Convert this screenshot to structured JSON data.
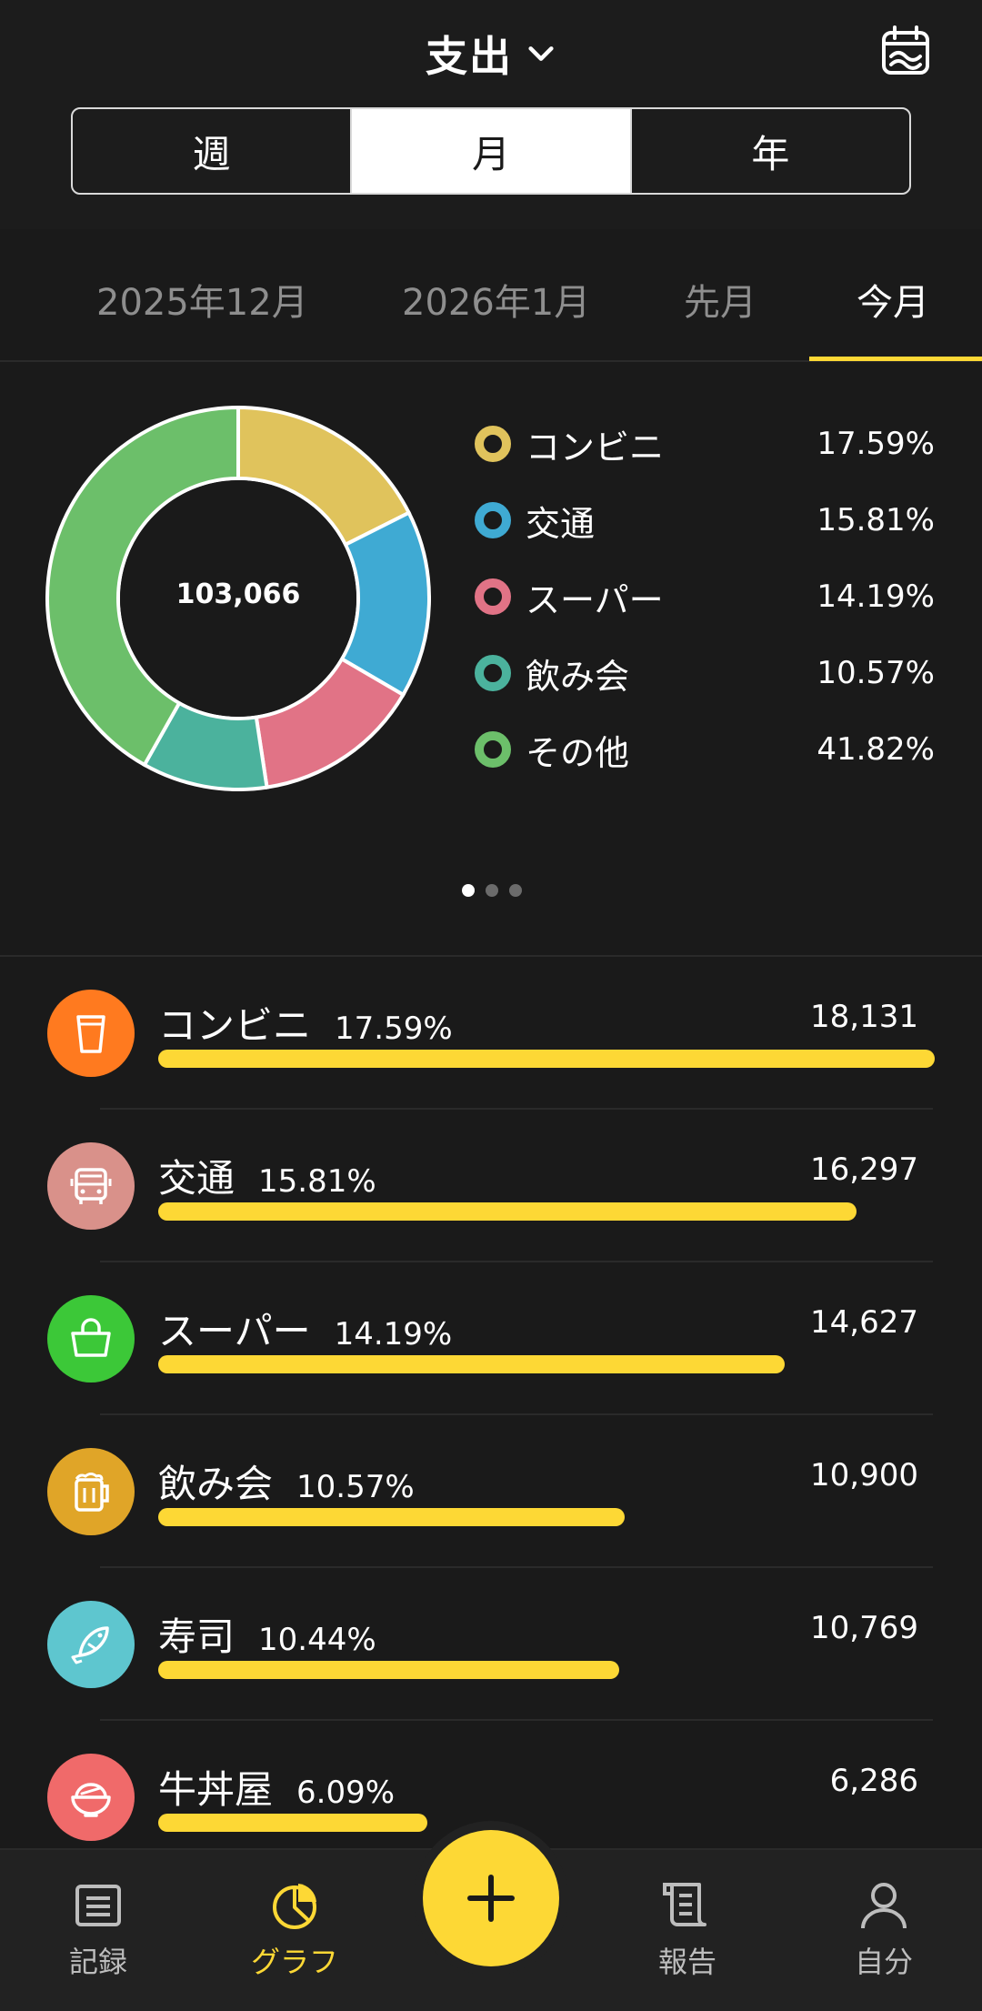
{
  "header": {
    "title": "支出",
    "segments": [
      "週",
      "月",
      "年"
    ],
    "active_segment": "月"
  },
  "month_tabs": [
    "2025年12月",
    "2026年1月",
    "先月",
    "今月"
  ],
  "summary": {
    "total": "103,066",
    "legend": [
      {
        "label": "コンビニ",
        "pct": "17.59%",
        "color": "#e0c35c"
      },
      {
        "label": "交通",
        "pct": "15.81%",
        "color": "#3faad3"
      },
      {
        "label": "スーパー",
        "pct": "14.19%",
        "color": "#e17386"
      },
      {
        "label": "飲み会",
        "pct": "10.57%",
        "color": "#4bb29d"
      },
      {
        "label": "その他",
        "pct": "41.82%",
        "color": "#6cbf6a"
      }
    ]
  },
  "chart_data": {
    "type": "pie",
    "categories": [
      "コンビニ",
      "交通",
      "スーパー",
      "飲み会",
      "その他"
    ],
    "values": [
      17.59,
      15.81,
      14.19,
      10.57,
      41.82
    ],
    "title": "",
    "center_label": "103,066"
  },
  "categories": [
    {
      "name": "コンビニ",
      "pct": "17.59%",
      "amount": "18,131",
      "value": 18131,
      "icon": "cup-icon",
      "color": "#ff7a1f"
    },
    {
      "name": "交通",
      "pct": "15.81%",
      "amount": "16,297",
      "value": 16297,
      "icon": "bus-icon",
      "color": "#d9918a"
    },
    {
      "name": "スーパー",
      "pct": "14.19%",
      "amount": "14,627",
      "value": 14627,
      "icon": "shopping-bag-icon",
      "color": "#3cc838"
    },
    {
      "name": "飲み会",
      "pct": "10.57%",
      "amount": "10,900",
      "value": 10900,
      "icon": "beer-mug-icon",
      "color": "#e0a528"
    },
    {
      "name": "寿司",
      "pct": "10.44%",
      "amount": "10,769",
      "value": 10769,
      "icon": "fish-icon",
      "color": "#5ec6cf"
    },
    {
      "name": "牛丼屋",
      "pct": "6.09%",
      "amount": "6,286",
      "value": 6286,
      "icon": "rice-bowl-icon",
      "color": "#f06a6a"
    }
  ],
  "nav": {
    "items": [
      {
        "label": "記録",
        "icon": "list-icon"
      },
      {
        "label": "グラフ",
        "icon": "pie-chart-icon",
        "active": true
      },
      {
        "label": "報告",
        "icon": "report-icon"
      },
      {
        "label": "自分",
        "icon": "person-icon"
      }
    ],
    "accent": "#fdd835"
  }
}
